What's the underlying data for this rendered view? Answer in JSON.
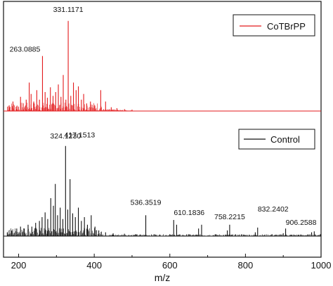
{
  "chart_data": {
    "type": "line",
    "xlabel": "m/z",
    "ylabel": "",
    "xlim": [
      160,
      1000
    ],
    "x_ticks": [
      200,
      400,
      600,
      800,
      1000
    ],
    "x_tick_labels": [
      "200",
      "400",
      "600",
      "800",
      "1000"
    ],
    "y_ticks_shown": false,
    "grid": false,
    "series": [
      {
        "name": "CoTBrPP",
        "color": "#e31a1c",
        "panel": "top",
        "legend_position": "top-right",
        "peaks": [
          {
            "x": 175,
            "y": 0.06
          },
          {
            "x": 185,
            "y": 0.1
          },
          {
            "x": 195,
            "y": 0.05
          },
          {
            "x": 205,
            "y": 0.15
          },
          {
            "x": 212,
            "y": 0.08
          },
          {
            "x": 220,
            "y": 0.12
          },
          {
            "x": 228,
            "y": 0.3
          },
          {
            "x": 233,
            "y": 0.18
          },
          {
            "x": 240,
            "y": 0.1
          },
          {
            "x": 248,
            "y": 0.22
          },
          {
            "x": 255,
            "y": 0.12
          },
          {
            "x": 263.0885,
            "y": 0.58
          },
          {
            "x": 270,
            "y": 0.2
          },
          {
            "x": 276,
            "y": 0.14
          },
          {
            "x": 284,
            "y": 0.25
          },
          {
            "x": 291,
            "y": 0.16
          },
          {
            "x": 298,
            "y": 0.2
          },
          {
            "x": 305,
            "y": 0.28
          },
          {
            "x": 312,
            "y": 0.15
          },
          {
            "x": 318,
            "y": 0.38
          },
          {
            "x": 325,
            "y": 0.12
          },
          {
            "x": 331.1171,
            "y": 0.95
          },
          {
            "x": 338,
            "y": 0.16
          },
          {
            "x": 345,
            "y": 0.3
          },
          {
            "x": 352,
            "y": 0.22
          },
          {
            "x": 358,
            "y": 0.26
          },
          {
            "x": 366,
            "y": 0.12
          },
          {
            "x": 372,
            "y": 0.18
          },
          {
            "x": 380,
            "y": 0.08
          },
          {
            "x": 390,
            "y": 0.1
          },
          {
            "x": 400,
            "y": 0.05
          },
          {
            "x": 417.1513,
            "y": 0.22
          },
          {
            "x": 430,
            "y": 0.1
          },
          {
            "x": 445,
            "y": 0.04
          },
          {
            "x": 460,
            "y": 0.03
          },
          {
            "x": 480,
            "y": 0.02
          },
          {
            "x": 500,
            "y": 0.015
          }
        ],
        "annotations": [
          {
            "label": "263.0885",
            "x": 263.0885
          },
          {
            "label": "331.1171",
            "x": 331.1171
          },
          {
            "label": "417.1513",
            "x": 417.1513
          }
        ]
      },
      {
        "name": "Control",
        "color": "#111111",
        "panel": "bottom",
        "legend_position": "top-right",
        "peaks": [
          {
            "x": 170,
            "y": 0.04
          },
          {
            "x": 182,
            "y": 0.06
          },
          {
            "x": 195,
            "y": 0.08
          },
          {
            "x": 205,
            "y": 0.1
          },
          {
            "x": 215,
            "y": 0.08
          },
          {
            "x": 225,
            "y": 0.12
          },
          {
            "x": 235,
            "y": 0.1
          },
          {
            "x": 245,
            "y": 0.14
          },
          {
            "x": 255,
            "y": 0.16
          },
          {
            "x": 262,
            "y": 0.2
          },
          {
            "x": 270,
            "y": 0.25
          },
          {
            "x": 277,
            "y": 0.18
          },
          {
            "x": 285,
            "y": 0.4
          },
          {
            "x": 292,
            "y": 0.32
          },
          {
            "x": 297,
            "y": 0.55
          },
          {
            "x": 303,
            "y": 0.22
          },
          {
            "x": 310,
            "y": 0.3
          },
          {
            "x": 317,
            "y": 0.18
          },
          {
            "x": 324.123,
            "y": 0.95
          },
          {
            "x": 330,
            "y": 0.28
          },
          {
            "x": 336,
            "y": 0.6
          },
          {
            "x": 343,
            "y": 0.24
          },
          {
            "x": 350,
            "y": 0.2
          },
          {
            "x": 358,
            "y": 0.3
          },
          {
            "x": 366,
            "y": 0.16
          },
          {
            "x": 374,
            "y": 0.2
          },
          {
            "x": 382,
            "y": 0.12
          },
          {
            "x": 392,
            "y": 0.22
          },
          {
            "x": 402,
            "y": 0.1
          },
          {
            "x": 412,
            "y": 0.06
          },
          {
            "x": 430,
            "y": 0.04
          },
          {
            "x": 450,
            "y": 0.03
          },
          {
            "x": 480,
            "y": 0.025
          },
          {
            "x": 510,
            "y": 0.02
          },
          {
            "x": 536.3519,
            "y": 0.22
          },
          {
            "x": 560,
            "y": 0.02
          },
          {
            "x": 600,
            "y": 0.02
          },
          {
            "x": 610.1836,
            "y": 0.17
          },
          {
            "x": 618,
            "y": 0.12
          },
          {
            "x": 650,
            "y": 0.02
          },
          {
            "x": 676,
            "y": 0.08
          },
          {
            "x": 684,
            "y": 0.12
          },
          {
            "x": 720,
            "y": 0.02
          },
          {
            "x": 752,
            "y": 0.06
          },
          {
            "x": 758.2215,
            "y": 0.12
          },
          {
            "x": 790,
            "y": 0.02
          },
          {
            "x": 826,
            "y": 0.04
          },
          {
            "x": 832.2402,
            "y": 0.09
          },
          {
            "x": 870,
            "y": 0.02
          },
          {
            "x": 900,
            "y": 0.03
          },
          {
            "x": 906.2588,
            "y": 0.08
          },
          {
            "x": 940,
            "y": 0.015
          },
          {
            "x": 975,
            "y": 0.04
          },
          {
            "x": 982,
            "y": 0.05
          },
          {
            "x": 998,
            "y": 0.02
          }
        ],
        "annotations": [
          {
            "label": "324.1230",
            "x": 324.123
          },
          {
            "label": "536.3519",
            "x": 536.3519
          },
          {
            "label": "610.1836",
            "x": 610.1836
          },
          {
            "label": "758.2215",
            "x": 758.2215
          },
          {
            "label": "832.2402",
            "x": 832.2402
          },
          {
            "label": "906.2588",
            "x": 906.2588
          }
        ]
      }
    ]
  }
}
